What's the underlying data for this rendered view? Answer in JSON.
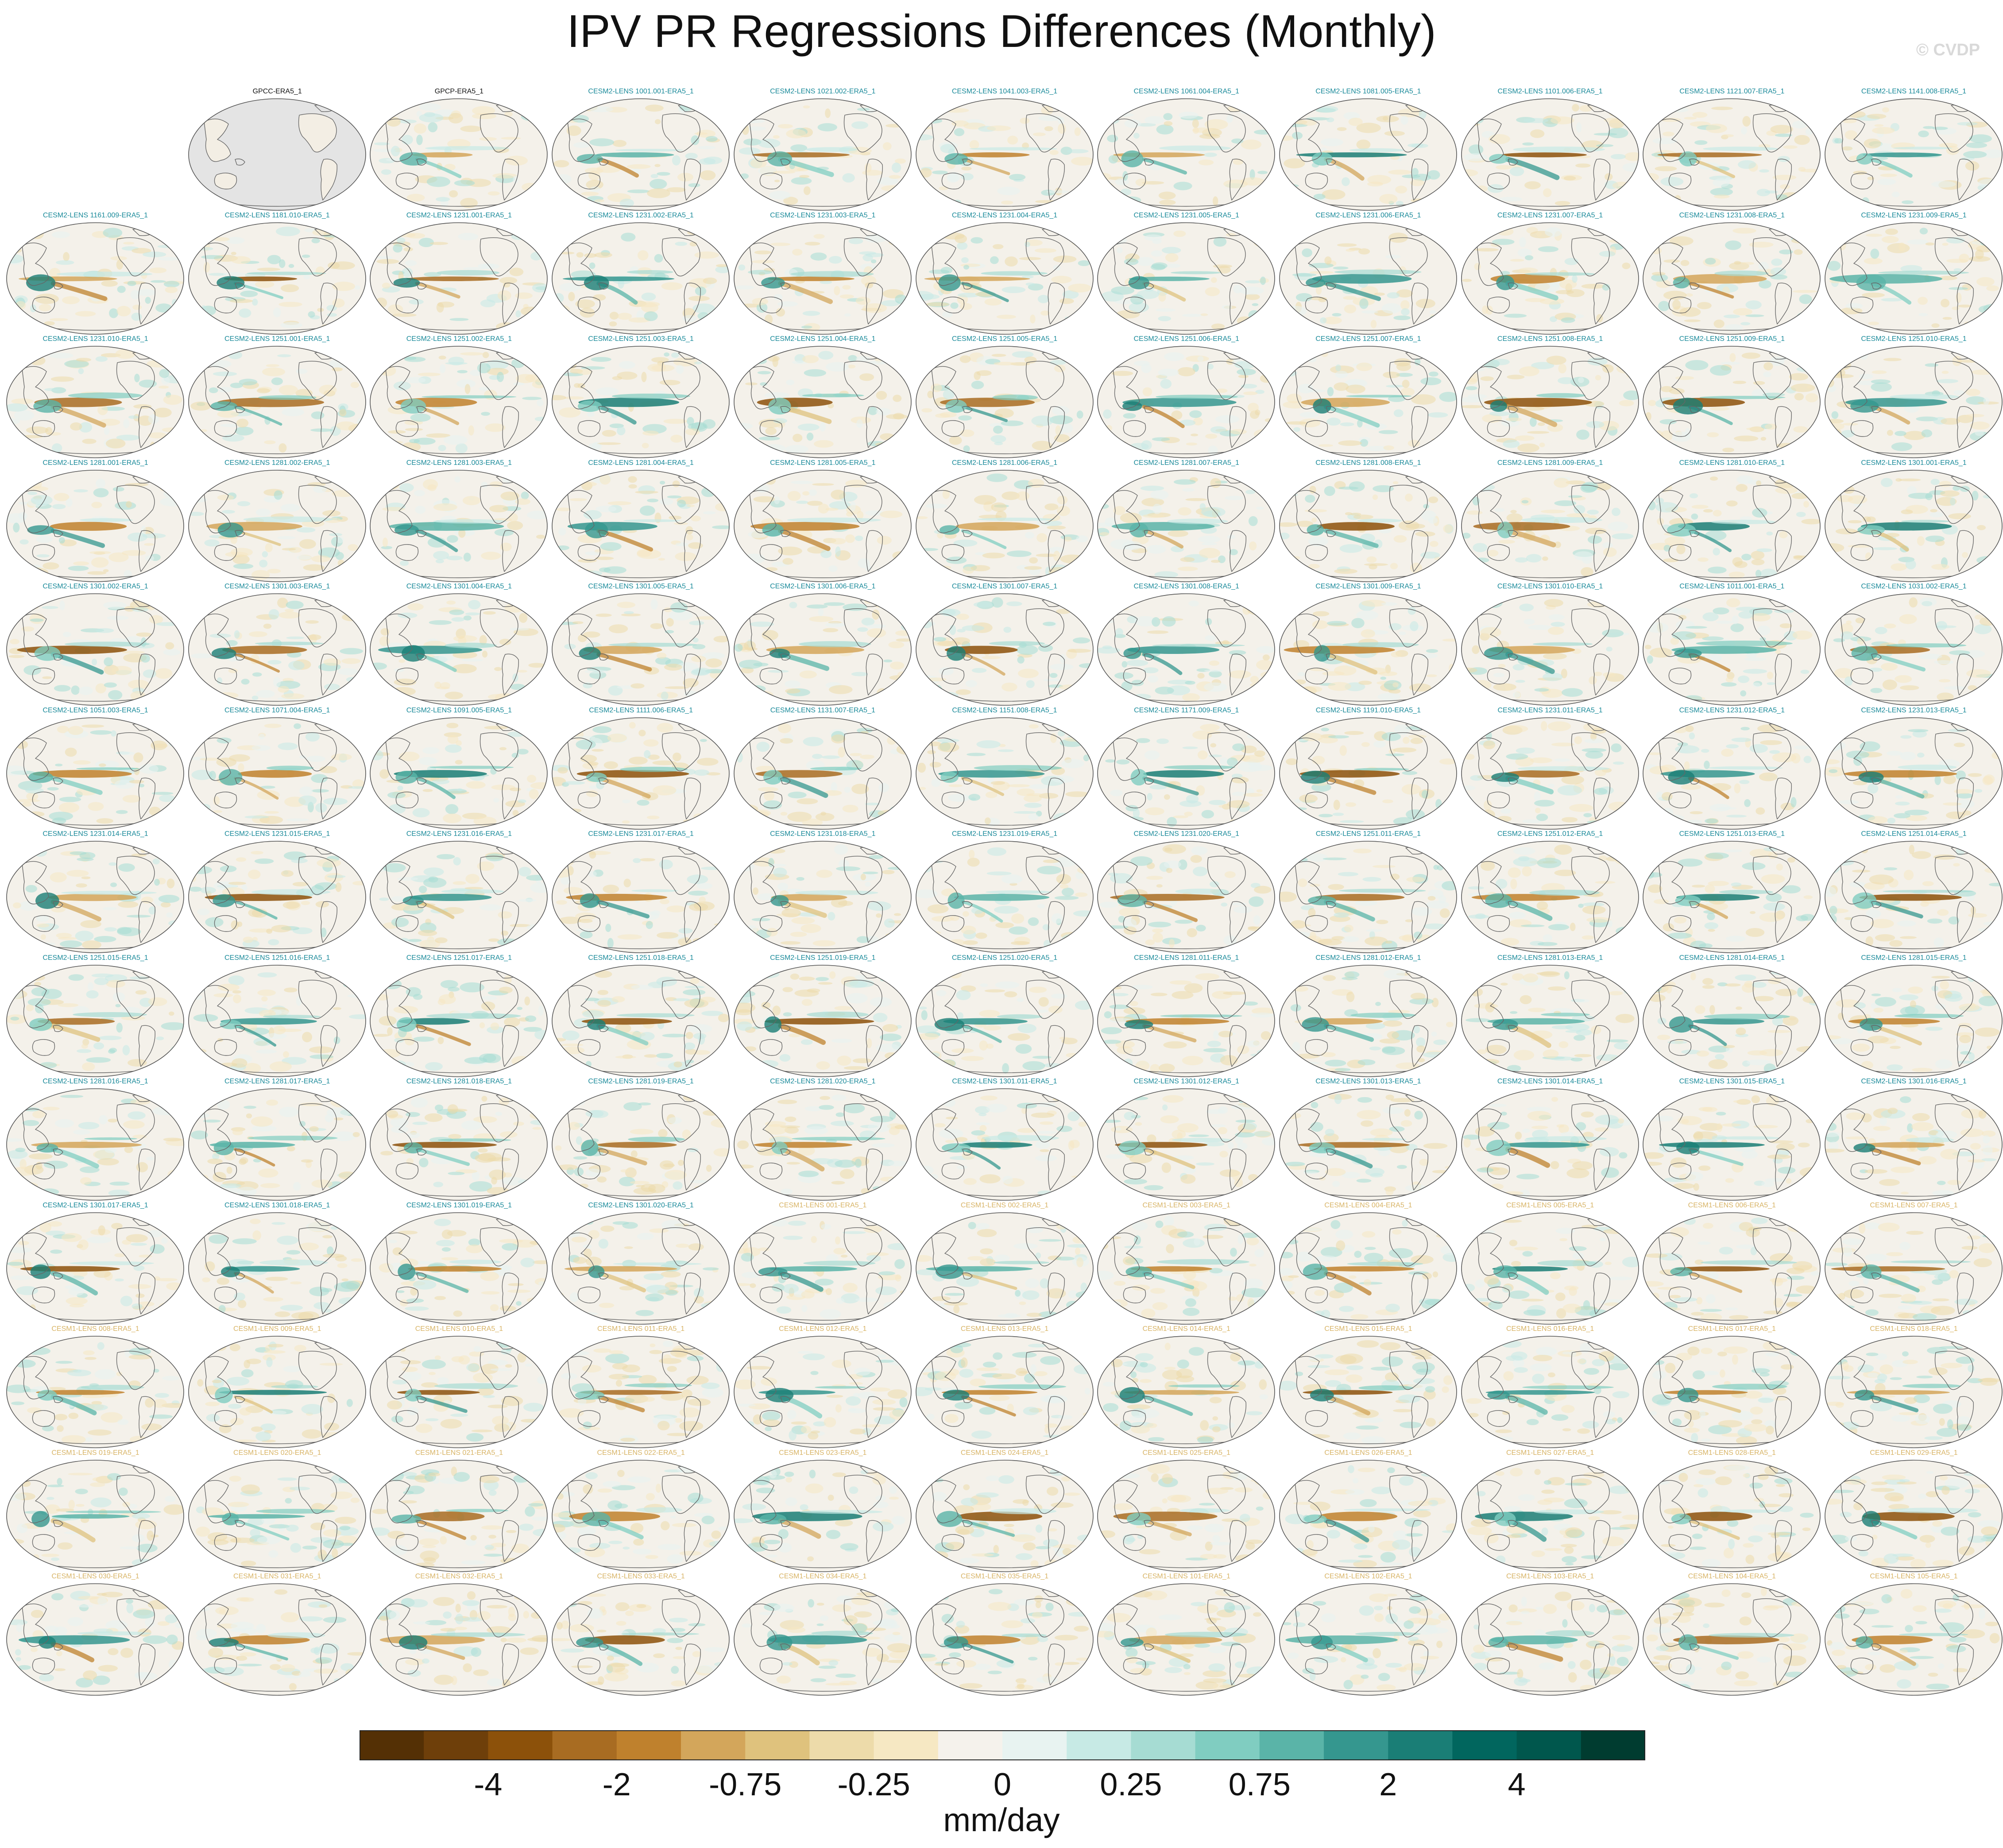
{
  "title": "IPV PR Regressions Differences (Monthly)",
  "watermark": "© CVDP",
  "colors": {
    "title_obs": "#111111",
    "title_cesm2": "#1a8a9a",
    "title_cesm1": "#d8b466",
    "land": "#f4f1ea",
    "missing": "#e4e4e4",
    "coast": "#666666"
  },
  "colorbar": {
    "colors": [
      "#543005",
      "#6e3f0a",
      "#8c510a",
      "#a86c22",
      "#bf812d",
      "#d3a65b",
      "#dfc27d",
      "#eddbaa",
      "#f6e8c3",
      "#f5f2ec",
      "#e8f3f1",
      "#c7eae5",
      "#a6dcd3",
      "#80cdc1",
      "#5ab4a8",
      "#35978f",
      "#1a7e76",
      "#01665e",
      "#00574d",
      "#003c30"
    ],
    "labels": [
      "-4",
      "-2",
      "-0.75",
      "-0.25",
      "0",
      "0.25",
      "0.75",
      "2",
      "4"
    ],
    "units": "mm/day"
  },
  "panels": [
    {
      "t": "",
      "g": "x"
    },
    {
      "t": "GPCC-ERA5_1",
      "g": "o"
    },
    {
      "t": "GPCP-ERA5_1",
      "g": "o"
    },
    {
      "t": "CESM2-LENS 1001.001-ERA5_1",
      "g": "2"
    },
    {
      "t": "CESM2-LENS 1021.002-ERA5_1",
      "g": "2"
    },
    {
      "t": "CESM2-LENS 1041.003-ERA5_1",
      "g": "2"
    },
    {
      "t": "CESM2-LENS 1061.004-ERA5_1",
      "g": "2"
    },
    {
      "t": "CESM2-LENS 1081.005-ERA5_1",
      "g": "2"
    },
    {
      "t": "CESM2-LENS 1101.006-ERA5_1",
      "g": "2"
    },
    {
      "t": "CESM2-LENS 1121.007-ERA5_1",
      "g": "2"
    },
    {
      "t": "CESM2-LENS 1141.008-ERA5_1",
      "g": "2"
    },
    {
      "t": "CESM2-LENS 1161.009-ERA5_1",
      "g": "2"
    },
    {
      "t": "CESM2-LENS 1181.010-ERA5_1",
      "g": "2"
    },
    {
      "t": "CESM2-LENS 1231.001-ERA5_1",
      "g": "2"
    },
    {
      "t": "CESM2-LENS 1231.002-ERA5_1",
      "g": "2"
    },
    {
      "t": "CESM2-LENS 1231.003-ERA5_1",
      "g": "2"
    },
    {
      "t": "CESM2-LENS 1231.004-ERA5_1",
      "g": "2"
    },
    {
      "t": "CESM2-LENS 1231.005-ERA5_1",
      "g": "2"
    },
    {
      "t": "CESM2-LENS 1231.006-ERA5_1",
      "g": "2"
    },
    {
      "t": "CESM2-LENS 1231.007-ERA5_1",
      "g": "2"
    },
    {
      "t": "CESM2-LENS 1231.008-ERA5_1",
      "g": "2"
    },
    {
      "t": "CESM2-LENS 1231.009-ERA5_1",
      "g": "2"
    },
    {
      "t": "CESM2-LENS 1231.010-ERA5_1",
      "g": "2"
    },
    {
      "t": "CESM2-LENS 1251.001-ERA5_1",
      "g": "2"
    },
    {
      "t": "CESM2-LENS 1251.002-ERA5_1",
      "g": "2"
    },
    {
      "t": "CESM2-LENS 1251.003-ERA5_1",
      "g": "2"
    },
    {
      "t": "CESM2-LENS 1251.004-ERA5_1",
      "g": "2"
    },
    {
      "t": "CESM2-LENS 1251.005-ERA5_1",
      "g": "2"
    },
    {
      "t": "CESM2-LENS 1251.006-ERA5_1",
      "g": "2"
    },
    {
      "t": "CESM2-LENS 1251.007-ERA5_1",
      "g": "2"
    },
    {
      "t": "CESM2-LENS 1251.008-ERA5_1",
      "g": "2"
    },
    {
      "t": "CESM2-LENS 1251.009-ERA5_1",
      "g": "2"
    },
    {
      "t": "CESM2-LENS 1251.010-ERA5_1",
      "g": "2"
    },
    {
      "t": "CESM2-LENS 1281.001-ERA5_1",
      "g": "2"
    },
    {
      "t": "CESM2-LENS 1281.002-ERA5_1",
      "g": "2"
    },
    {
      "t": "CESM2-LENS 1281.003-ERA5_1",
      "g": "2"
    },
    {
      "t": "CESM2-LENS 1281.004-ERA5_1",
      "g": "2"
    },
    {
      "t": "CESM2-LENS 1281.005-ERA5_1",
      "g": "2"
    },
    {
      "t": "CESM2-LENS 1281.006-ERA5_1",
      "g": "2"
    },
    {
      "t": "CESM2-LENS 1281.007-ERA5_1",
      "g": "2"
    },
    {
      "t": "CESM2-LENS 1281.008-ERA5_1",
      "g": "2"
    },
    {
      "t": "CESM2-LENS 1281.009-ERA5_1",
      "g": "2"
    },
    {
      "t": "CESM2-LENS 1281.010-ERA5_1",
      "g": "2"
    },
    {
      "t": "CESM2-LENS 1301.001-ERA5_1",
      "g": "2"
    },
    {
      "t": "CESM2-LENS 1301.002-ERA5_1",
      "g": "2"
    },
    {
      "t": "CESM2-LENS 1301.003-ERA5_1",
      "g": "2"
    },
    {
      "t": "CESM2-LENS 1301.004-ERA5_1",
      "g": "2"
    },
    {
      "t": "CESM2-LENS 1301.005-ERA5_1",
      "g": "2"
    },
    {
      "t": "CESM2-LENS 1301.006-ERA5_1",
      "g": "2"
    },
    {
      "t": "CESM2-LENS 1301.007-ERA5_1",
      "g": "2"
    },
    {
      "t": "CESM2-LENS 1301.008-ERA5_1",
      "g": "2"
    },
    {
      "t": "CESM2-LENS 1301.009-ERA5_1",
      "g": "2"
    },
    {
      "t": "CESM2-LENS 1301.010-ERA5_1",
      "g": "2"
    },
    {
      "t": "CESM2-LENS 1011.001-ERA5_1",
      "g": "2"
    },
    {
      "t": "CESM2-LENS 1031.002-ERA5_1",
      "g": "2"
    },
    {
      "t": "CESM2-LENS 1051.003-ERA5_1",
      "g": "2"
    },
    {
      "t": "CESM2-LENS 1071.004-ERA5_1",
      "g": "2"
    },
    {
      "t": "CESM2-LENS 1091.005-ERA5_1",
      "g": "2"
    },
    {
      "t": "CESM2-LENS 1111.006-ERA5_1",
      "g": "2"
    },
    {
      "t": "CESM2-LENS 1131.007-ERA5_1",
      "g": "2"
    },
    {
      "t": "CESM2-LENS 1151.008-ERA5_1",
      "g": "2"
    },
    {
      "t": "CESM2-LENS 1171.009-ERA5_1",
      "g": "2"
    },
    {
      "t": "CESM2-LENS 1191.010-ERA5_1",
      "g": "2"
    },
    {
      "t": "CESM2-LENS 1231.011-ERA5_1",
      "g": "2"
    },
    {
      "t": "CESM2-LENS 1231.012-ERA5_1",
      "g": "2"
    },
    {
      "t": "CESM2-LENS 1231.013-ERA5_1",
      "g": "2"
    },
    {
      "t": "CESM2-LENS 1231.014-ERA5_1",
      "g": "2"
    },
    {
      "t": "CESM2-LENS 1231.015-ERA5_1",
      "g": "2"
    },
    {
      "t": "CESM2-LENS 1231.016-ERA5_1",
      "g": "2"
    },
    {
      "t": "CESM2-LENS 1231.017-ERA5_1",
      "g": "2"
    },
    {
      "t": "CESM2-LENS 1231.018-ERA5_1",
      "g": "2"
    },
    {
      "t": "CESM2-LENS 1231.019-ERA5_1",
      "g": "2"
    },
    {
      "t": "CESM2-LENS 1231.020-ERA5_1",
      "g": "2"
    },
    {
      "t": "CESM2-LENS 1251.011-ERA5_1",
      "g": "2"
    },
    {
      "t": "CESM2-LENS 1251.012-ERA5_1",
      "g": "2"
    },
    {
      "t": "CESM2-LENS 1251.013-ERA5_1",
      "g": "2"
    },
    {
      "t": "CESM2-LENS 1251.014-ERA5_1",
      "g": "2"
    },
    {
      "t": "CESM2-LENS 1251.015-ERA5_1",
      "g": "2"
    },
    {
      "t": "CESM2-LENS 1251.016-ERA5_1",
      "g": "2"
    },
    {
      "t": "CESM2-LENS 1251.017-ERA5_1",
      "g": "2"
    },
    {
      "t": "CESM2-LENS 1251.018-ERA5_1",
      "g": "2"
    },
    {
      "t": "CESM2-LENS 1251.019-ERA5_1",
      "g": "2"
    },
    {
      "t": "CESM2-LENS 1251.020-ERA5_1",
      "g": "2"
    },
    {
      "t": "CESM2-LENS 1281.011-ERA5_1",
      "g": "2"
    },
    {
      "t": "CESM2-LENS 1281.012-ERA5_1",
      "g": "2"
    },
    {
      "t": "CESM2-LENS 1281.013-ERA5_1",
      "g": "2"
    },
    {
      "t": "CESM2-LENS 1281.014-ERA5_1",
      "g": "2"
    },
    {
      "t": "CESM2-LENS 1281.015-ERA5_1",
      "g": "2"
    },
    {
      "t": "CESM2-LENS 1281.016-ERA5_1",
      "g": "2"
    },
    {
      "t": "CESM2-LENS 1281.017-ERA5_1",
      "g": "2"
    },
    {
      "t": "CESM2-LENS 1281.018-ERA5_1",
      "g": "2"
    },
    {
      "t": "CESM2-LENS 1281.019-ERA5_1",
      "g": "2"
    },
    {
      "t": "CESM2-LENS 1281.020-ERA5_1",
      "g": "2"
    },
    {
      "t": "CESM2-LENS 1301.011-ERA5_1",
      "g": "2"
    },
    {
      "t": "CESM2-LENS 1301.012-ERA5_1",
      "g": "2"
    },
    {
      "t": "CESM2-LENS 1301.013-ERA5_1",
      "g": "2"
    },
    {
      "t": "CESM2-LENS 1301.014-ERA5_1",
      "g": "2"
    },
    {
      "t": "CESM2-LENS 1301.015-ERA5_1",
      "g": "2"
    },
    {
      "t": "CESM2-LENS 1301.016-ERA5_1",
      "g": "2"
    },
    {
      "t": "CESM2-LENS 1301.017-ERA5_1",
      "g": "2"
    },
    {
      "t": "CESM2-LENS 1301.018-ERA5_1",
      "g": "2"
    },
    {
      "t": "CESM2-LENS 1301.019-ERA5_1",
      "g": "2"
    },
    {
      "t": "CESM2-LENS 1301.020-ERA5_1",
      "g": "2"
    },
    {
      "t": "CESM1-LENS 001-ERA5_1",
      "g": "1"
    },
    {
      "t": "CESM1-LENS 002-ERA5_1",
      "g": "1"
    },
    {
      "t": "CESM1-LENS 003-ERA5_1",
      "g": "1"
    },
    {
      "t": "CESM1-LENS 004-ERA5_1",
      "g": "1"
    },
    {
      "t": "CESM1-LENS 005-ERA5_1",
      "g": "1"
    },
    {
      "t": "CESM1-LENS 006-ERA5_1",
      "g": "1"
    },
    {
      "t": "CESM1-LENS 007-ERA5_1",
      "g": "1"
    },
    {
      "t": "CESM1-LENS 008-ERA5_1",
      "g": "1"
    },
    {
      "t": "CESM1-LENS 009-ERA5_1",
      "g": "1"
    },
    {
      "t": "CESM1-LENS 010-ERA5_1",
      "g": "1"
    },
    {
      "t": "CESM1-LENS 011-ERA5_1",
      "g": "1"
    },
    {
      "t": "CESM1-LENS 012-ERA5_1",
      "g": "1"
    },
    {
      "t": "CESM1-LENS 013-ERA5_1",
      "g": "1"
    },
    {
      "t": "CESM1-LENS 014-ERA5_1",
      "g": "1"
    },
    {
      "t": "CESM1-LENS 015-ERA5_1",
      "g": "1"
    },
    {
      "t": "CESM1-LENS 016-ERA5_1",
      "g": "1"
    },
    {
      "t": "CESM1-LENS 017-ERA5_1",
      "g": "1"
    },
    {
      "t": "CESM1-LENS 018-ERA5_1",
      "g": "1"
    },
    {
      "t": "CESM1-LENS 019-ERA5_1",
      "g": "1"
    },
    {
      "t": "CESM1-LENS 020-ERA5_1",
      "g": "1"
    },
    {
      "t": "CESM1-LENS 021-ERA5_1",
      "g": "1"
    },
    {
      "t": "CESM1-LENS 022-ERA5_1",
      "g": "1"
    },
    {
      "t": "CESM1-LENS 023-ERA5_1",
      "g": "1"
    },
    {
      "t": "CESM1-LENS 024-ERA5_1",
      "g": "1"
    },
    {
      "t": "CESM1-LENS 025-ERA5_1",
      "g": "1"
    },
    {
      "t": "CESM1-LENS 026-ERA5_1",
      "g": "1"
    },
    {
      "t": "CESM1-LENS 027-ERA5_1",
      "g": "1"
    },
    {
      "t": "CESM1-LENS 028-ERA5_1",
      "g": "1"
    },
    {
      "t": "CESM1-LENS 029-ERA5_1",
      "g": "1"
    },
    {
      "t": "CESM1-LENS 030-ERA5_1",
      "g": "1"
    },
    {
      "t": "CESM1-LENS 031-ERA5_1",
      "g": "1"
    },
    {
      "t": "CESM1-LENS 032-ERA5_1",
      "g": "1"
    },
    {
      "t": "CESM1-LENS 033-ERA5_1",
      "g": "1"
    },
    {
      "t": "CESM1-LENS 034-ERA5_1",
      "g": "1"
    },
    {
      "t": "CESM1-LENS 035-ERA5_1",
      "g": "1"
    },
    {
      "t": "CESM1-LENS 101-ERA5_1",
      "g": "1"
    },
    {
      "t": "CESM1-LENS 102-ERA5_1",
      "g": "1"
    },
    {
      "t": "CESM1-LENS 103-ERA5_1",
      "g": "1"
    },
    {
      "t": "CESM1-LENS 104-ERA5_1",
      "g": "1"
    },
    {
      "t": "CESM1-LENS 105-ERA5_1",
      "g": "1"
    }
  ]
}
